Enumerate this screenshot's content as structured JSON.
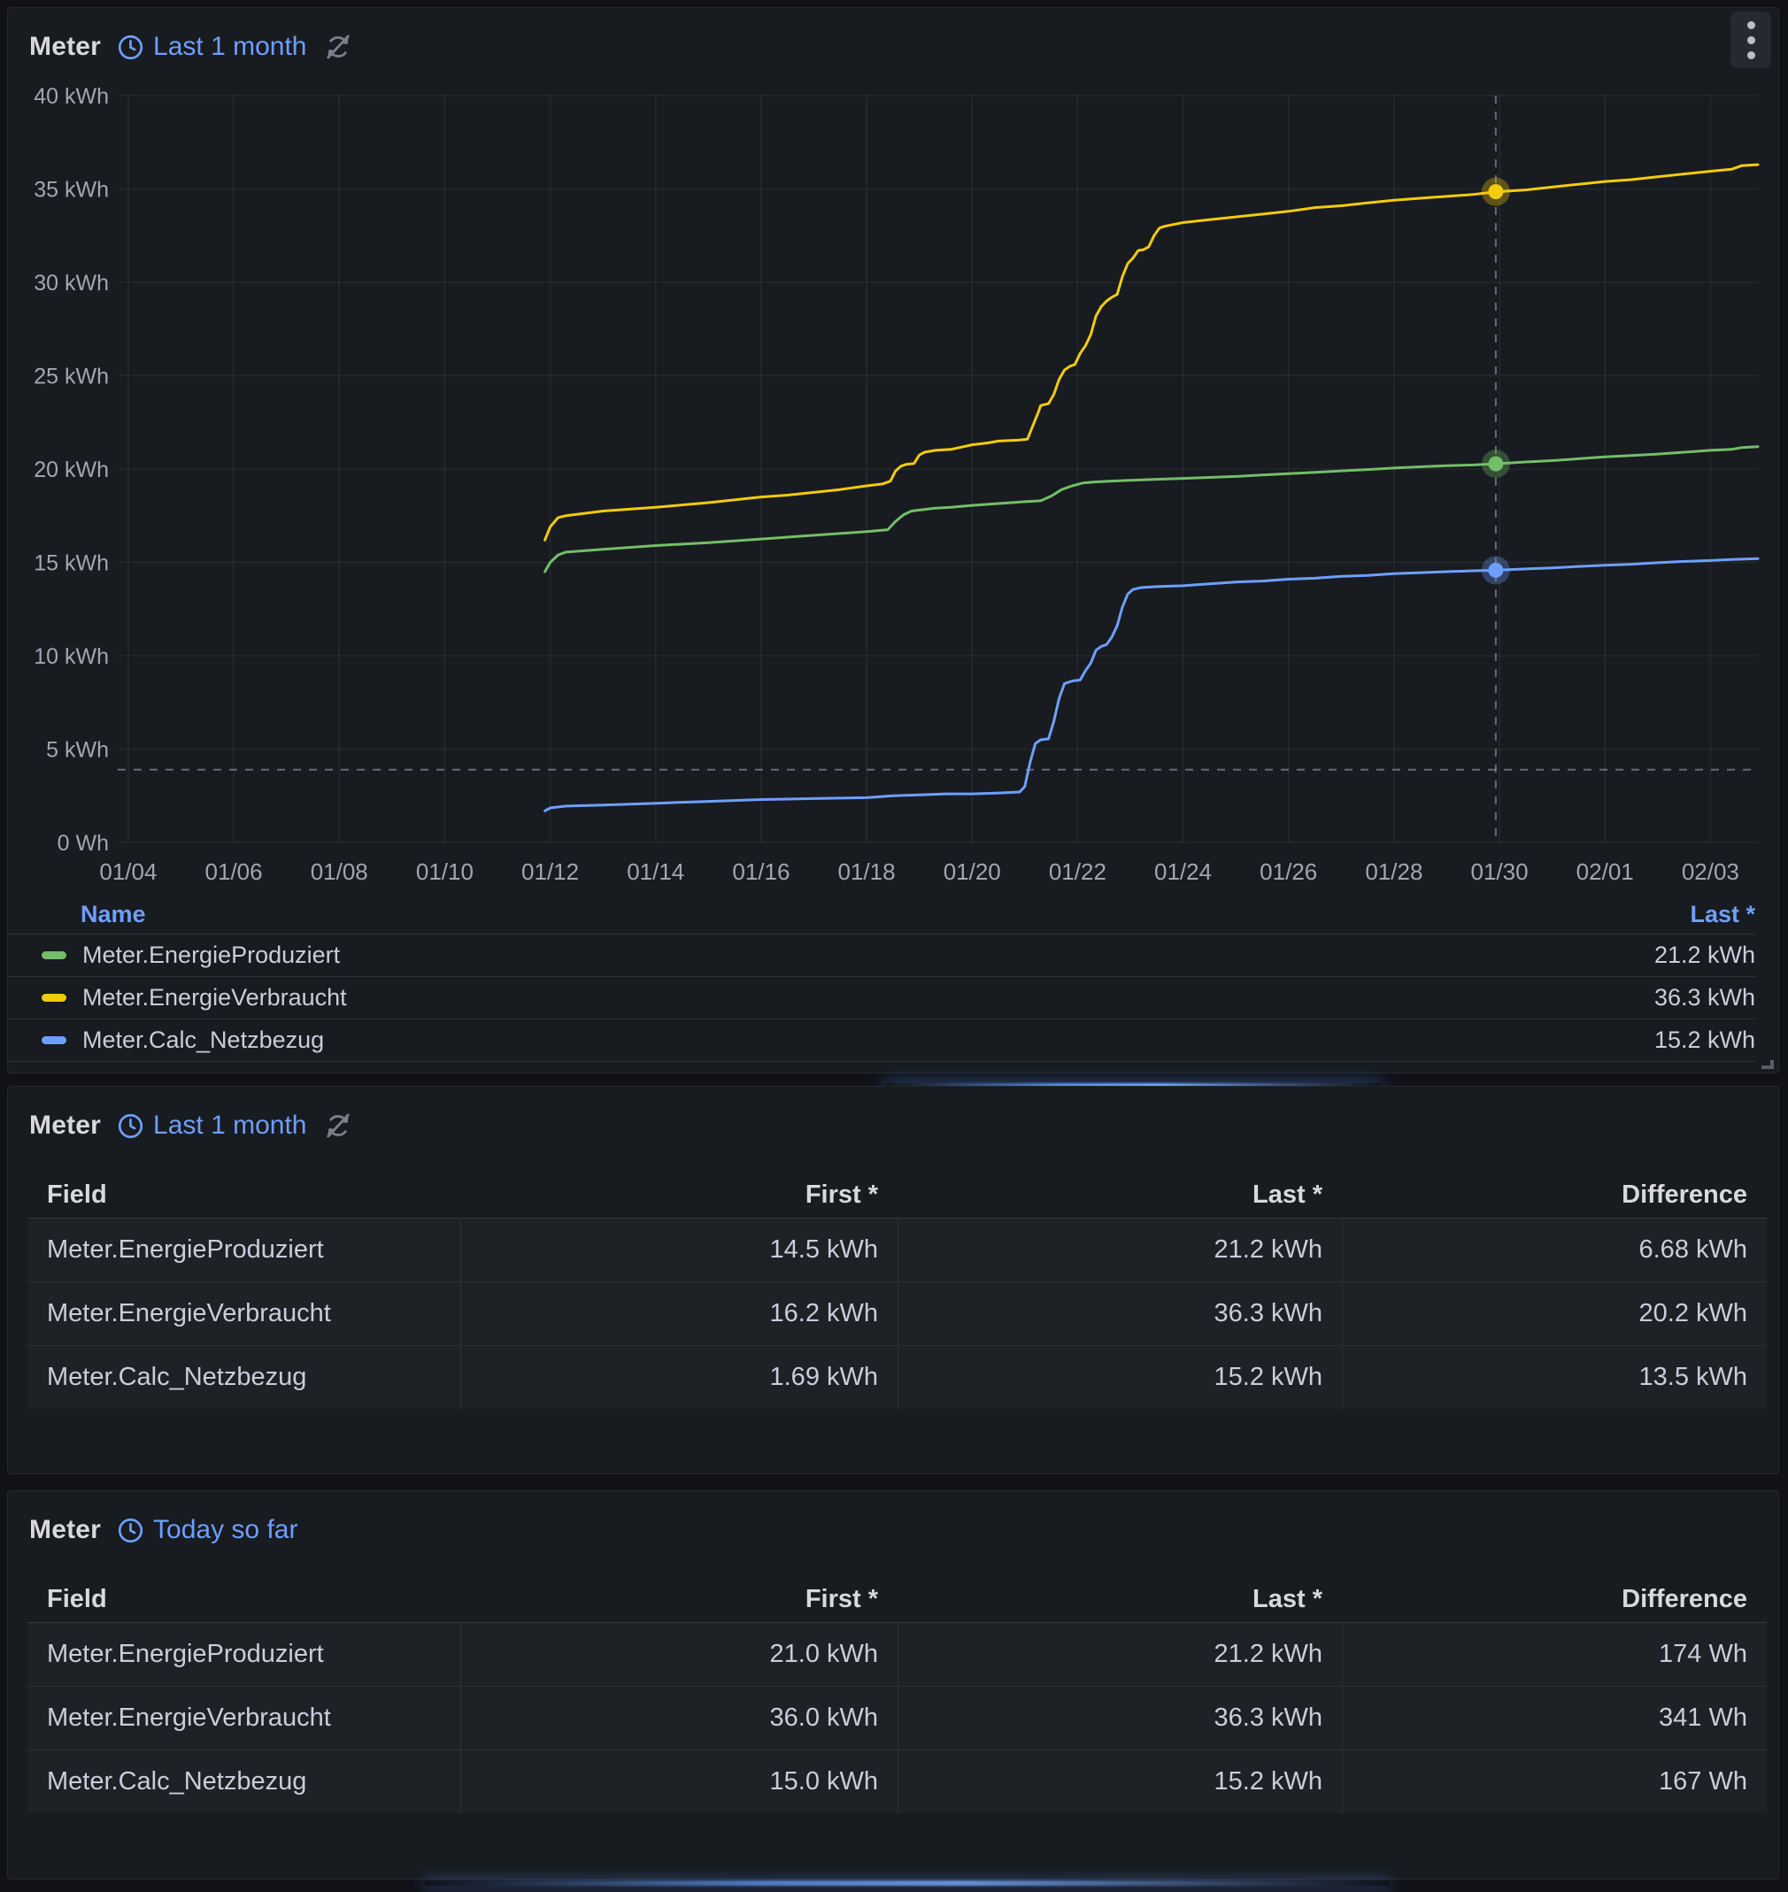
{
  "colors": {
    "page_bg": "#111217",
    "panel_bg": "#181b1f",
    "link_blue": "#6e9fff",
    "text_primary": "#ccccdc",
    "green": "#73bf69",
    "yellow": "#f2cc0c",
    "blue": "#6e9fff",
    "crosshair": "rgba(204,204,220,0.45)",
    "grid": "rgba(204,204,220,0.08)"
  },
  "chart_panel": {
    "title": "Meter",
    "time_override": "Last 1 month",
    "legend": {
      "name_header": "Name",
      "value_header": "Last *",
      "rows": [
        {
          "label": "Meter.EnergieProduziert",
          "value": "21.2 kWh",
          "color": "#73bf69"
        },
        {
          "label": "Meter.EnergieVerbraucht",
          "value": "36.3 kWh",
          "color": "#f2cc0c"
        },
        {
          "label": "Meter.Calc_Netzbezug",
          "value": "15.2 kWh",
          "color": "#6e9fff"
        }
      ]
    }
  },
  "table1": {
    "title": "Meter",
    "time_override": "Last 1 month",
    "columns": [
      "Field",
      "First *",
      "Last *",
      "Difference"
    ],
    "rows": [
      [
        "Meter.EnergieProduziert",
        "14.5 kWh",
        "21.2 kWh",
        "6.68 kWh"
      ],
      [
        "Meter.EnergieVerbraucht",
        "16.2 kWh",
        "36.3 kWh",
        "20.2 kWh"
      ],
      [
        "Meter.Calc_Netzbezug",
        "1.69 kWh",
        "15.2 kWh",
        "13.5 kWh"
      ]
    ]
  },
  "table2": {
    "title": "Meter",
    "time_override": "Today so far",
    "columns": [
      "Field",
      "First *",
      "Last *",
      "Difference"
    ],
    "rows": [
      [
        "Meter.EnergieProduziert",
        "21.0 kWh",
        "21.2 kWh",
        "174 Wh"
      ],
      [
        "Meter.EnergieVerbraucht",
        "36.0 kWh",
        "36.3 kWh",
        "341 Wh"
      ],
      [
        "Meter.Calc_Netzbezug",
        "15.0 kWh",
        "15.2 kWh",
        "167 Wh"
      ]
    ]
  },
  "chart_data": {
    "type": "line",
    "title": "Meter",
    "ylabel": "",
    "xlabel": "",
    "ylim": [
      0,
      40
    ],
    "y_ticks": [
      0,
      5,
      10,
      15,
      20,
      25,
      30,
      35,
      40
    ],
    "y_tick_labels": [
      "0 Wh",
      "5 kWh",
      "10 kWh",
      "15 kWh",
      "20 kWh",
      "25 kWh",
      "30 kWh",
      "35 kWh",
      "40 kWh"
    ],
    "x_domain_days": [
      3.8,
      34.9
    ],
    "x_tick_days": [
      4,
      6,
      8,
      10,
      12,
      14,
      16,
      18,
      20,
      22,
      24,
      26,
      28,
      30,
      32,
      34
    ],
    "x_tick_labels": [
      "01/04",
      "01/06",
      "01/08",
      "01/10",
      "01/12",
      "01/14",
      "01/16",
      "01/18",
      "01/20",
      "01/22",
      "01/24",
      "01/26",
      "01/28",
      "01/30",
      "02/01",
      "02/03"
    ],
    "grid": true,
    "legend_position": "bottom-table",
    "crosshair": {
      "day": 29.93,
      "h_line_kwh": 3.9,
      "markers": [
        {
          "series": "Meter.EnergieVerbraucht",
          "kwh": 34.85
        },
        {
          "series": "Meter.EnergieProduziert",
          "kwh": 20.28
        },
        {
          "series": "Meter.Calc_Netzbezug",
          "kwh": 14.58
        }
      ]
    },
    "series": [
      {
        "name": "Meter.EnergieVerbraucht",
        "color": "#f2cc0c",
        "points": [
          [
            11.9,
            16.2
          ],
          [
            12.0,
            16.9
          ],
          [
            12.15,
            17.4
          ],
          [
            12.3,
            17.5
          ],
          [
            13,
            17.75
          ],
          [
            14,
            17.95
          ],
          [
            15,
            18.2
          ],
          [
            16,
            18.5
          ],
          [
            16.5,
            18.6
          ],
          [
            17,
            18.75
          ],
          [
            17.5,
            18.9
          ],
          [
            18,
            19.1
          ],
          [
            18.3,
            19.2
          ],
          [
            18.45,
            19.35
          ],
          [
            18.55,
            19.9
          ],
          [
            18.65,
            20.15
          ],
          [
            18.75,
            20.25
          ],
          [
            18.9,
            20.3
          ],
          [
            19.0,
            20.75
          ],
          [
            19.1,
            20.9
          ],
          [
            19.3,
            21.0
          ],
          [
            19.6,
            21.05
          ],
          [
            20.0,
            21.3
          ],
          [
            20.3,
            21.4
          ],
          [
            20.5,
            21.5
          ],
          [
            20.9,
            21.55
          ],
          [
            21.05,
            21.6
          ],
          [
            21.15,
            22.3
          ],
          [
            21.25,
            23.0
          ],
          [
            21.3,
            23.4
          ],
          [
            21.45,
            23.5
          ],
          [
            21.55,
            24.0
          ],
          [
            21.65,
            24.8
          ],
          [
            21.75,
            25.3
          ],
          [
            21.85,
            25.5
          ],
          [
            21.95,
            25.6
          ],
          [
            22.05,
            26.2
          ],
          [
            22.15,
            26.6
          ],
          [
            22.25,
            27.2
          ],
          [
            22.35,
            28.2
          ],
          [
            22.45,
            28.7
          ],
          [
            22.55,
            29.0
          ],
          [
            22.65,
            29.2
          ],
          [
            22.75,
            29.35
          ],
          [
            22.85,
            30.3
          ],
          [
            22.95,
            31.0
          ],
          [
            23.05,
            31.3
          ],
          [
            23.15,
            31.7
          ],
          [
            23.25,
            31.75
          ],
          [
            23.35,
            31.9
          ],
          [
            23.45,
            32.5
          ],
          [
            23.55,
            32.9
          ],
          [
            23.65,
            33.0
          ],
          [
            24.0,
            33.2
          ],
          [
            24.5,
            33.35
          ],
          [
            25,
            33.5
          ],
          [
            25.5,
            33.65
          ],
          [
            26,
            33.8
          ],
          [
            26.5,
            34.0
          ],
          [
            27,
            34.1
          ],
          [
            27.5,
            34.25
          ],
          [
            28,
            34.4
          ],
          [
            28.5,
            34.5
          ],
          [
            29,
            34.6
          ],
          [
            29.5,
            34.7
          ],
          [
            29.93,
            34.85
          ],
          [
            30.5,
            34.95
          ],
          [
            31,
            35.1
          ],
          [
            31.5,
            35.25
          ],
          [
            32,
            35.4
          ],
          [
            32.5,
            35.5
          ],
          [
            33,
            35.65
          ],
          [
            33.5,
            35.8
          ],
          [
            34,
            35.95
          ],
          [
            34.4,
            36.05
          ],
          [
            34.6,
            36.25
          ],
          [
            34.9,
            36.3
          ]
        ]
      },
      {
        "name": "Meter.EnergieProduziert",
        "color": "#73bf69",
        "points": [
          [
            11.9,
            14.5
          ],
          [
            12.0,
            15.0
          ],
          [
            12.15,
            15.4
          ],
          [
            12.3,
            15.55
          ],
          [
            13,
            15.7
          ],
          [
            14,
            15.9
          ],
          [
            15,
            16.05
          ],
          [
            16,
            16.25
          ],
          [
            17,
            16.45
          ],
          [
            18,
            16.65
          ],
          [
            18.4,
            16.75
          ],
          [
            18.55,
            17.2
          ],
          [
            18.7,
            17.55
          ],
          [
            18.85,
            17.75
          ],
          [
            19.0,
            17.8
          ],
          [
            19.3,
            17.9
          ],
          [
            19.6,
            17.95
          ],
          [
            20,
            18.05
          ],
          [
            20.5,
            18.15
          ],
          [
            21,
            18.25
          ],
          [
            21.3,
            18.3
          ],
          [
            21.5,
            18.55
          ],
          [
            21.7,
            18.9
          ],
          [
            21.9,
            19.1
          ],
          [
            22.1,
            19.25
          ],
          [
            22.3,
            19.3
          ],
          [
            22.6,
            19.35
          ],
          [
            23,
            19.4
          ],
          [
            23.5,
            19.45
          ],
          [
            24,
            19.5
          ],
          [
            24.5,
            19.55
          ],
          [
            25,
            19.6
          ],
          [
            25.5,
            19.68
          ],
          [
            26,
            19.75
          ],
          [
            26.5,
            19.82
          ],
          [
            27,
            19.9
          ],
          [
            27.5,
            19.97
          ],
          [
            28,
            20.05
          ],
          [
            28.5,
            20.12
          ],
          [
            29,
            20.18
          ],
          [
            29.5,
            20.22
          ],
          [
            29.93,
            20.28
          ],
          [
            30.5,
            20.38
          ],
          [
            31,
            20.45
          ],
          [
            31.5,
            20.55
          ],
          [
            32,
            20.65
          ],
          [
            32.5,
            20.72
          ],
          [
            33,
            20.8
          ],
          [
            33.5,
            20.9
          ],
          [
            34,
            21.0
          ],
          [
            34.4,
            21.05
          ],
          [
            34.6,
            21.15
          ],
          [
            34.9,
            21.2
          ]
        ]
      },
      {
        "name": "Meter.Calc_Netzbezug",
        "color": "#6e9fff",
        "points": [
          [
            11.9,
            1.69
          ],
          [
            12.0,
            1.85
          ],
          [
            12.3,
            1.95
          ],
          [
            13,
            2.0
          ],
          [
            14,
            2.1
          ],
          [
            14.5,
            2.15
          ],
          [
            15,
            2.2
          ],
          [
            16,
            2.3
          ],
          [
            17,
            2.35
          ],
          [
            18,
            2.4
          ],
          [
            18.5,
            2.5
          ],
          [
            19,
            2.55
          ],
          [
            19.5,
            2.6
          ],
          [
            20,
            2.6
          ],
          [
            20.5,
            2.65
          ],
          [
            20.9,
            2.7
          ],
          [
            21.0,
            3.0
          ],
          [
            21.1,
            4.3
          ],
          [
            21.2,
            5.3
          ],
          [
            21.3,
            5.5
          ],
          [
            21.45,
            5.55
          ],
          [
            21.55,
            6.5
          ],
          [
            21.65,
            7.7
          ],
          [
            21.75,
            8.5
          ],
          [
            21.9,
            8.65
          ],
          [
            22.05,
            8.7
          ],
          [
            22.15,
            9.2
          ],
          [
            22.25,
            9.6
          ],
          [
            22.35,
            10.3
          ],
          [
            22.45,
            10.5
          ],
          [
            22.55,
            10.6
          ],
          [
            22.65,
            11.0
          ],
          [
            22.75,
            11.6
          ],
          [
            22.85,
            12.6
          ],
          [
            22.95,
            13.3
          ],
          [
            23.05,
            13.55
          ],
          [
            23.2,
            13.65
          ],
          [
            23.5,
            13.7
          ],
          [
            24,
            13.75
          ],
          [
            24.5,
            13.85
          ],
          [
            25,
            13.95
          ],
          [
            25.5,
            14.0
          ],
          [
            26,
            14.1
          ],
          [
            26.5,
            14.15
          ],
          [
            27,
            14.25
          ],
          [
            27.5,
            14.3
          ],
          [
            28,
            14.4
          ],
          [
            28.5,
            14.45
          ],
          [
            29,
            14.5
          ],
          [
            29.5,
            14.55
          ],
          [
            29.93,
            14.58
          ],
          [
            30.5,
            14.65
          ],
          [
            31,
            14.7
          ],
          [
            31.5,
            14.78
          ],
          [
            32,
            14.85
          ],
          [
            32.5,
            14.9
          ],
          [
            33,
            14.98
          ],
          [
            33.5,
            15.05
          ],
          [
            34,
            15.1
          ],
          [
            34.4,
            15.15
          ],
          [
            34.9,
            15.2
          ]
        ]
      }
    ]
  }
}
